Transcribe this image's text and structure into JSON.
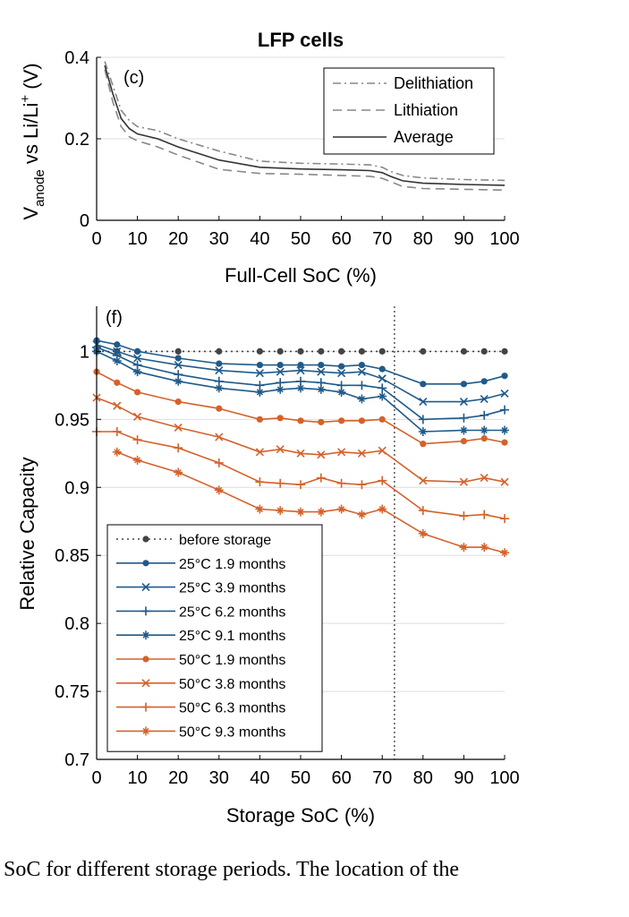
{
  "chart_data": [
    {
      "type": "line",
      "panel_label": "(c)",
      "title": "LFP cells",
      "xlabel": "Full-Cell SoC (%)",
      "ylabel": {
        "main": "V",
        "sub": "anode",
        "mid": " vs Li/Li",
        "sup": "+",
        "end": " (V)"
      },
      "xlim": [
        0,
        100
      ],
      "ylim": [
        0,
        0.4
      ],
      "xticks": [
        "0",
        "10",
        "20",
        "30",
        "40",
        "50",
        "60",
        "70",
        "80",
        "90",
        "100"
      ],
      "yticks": [
        "0",
        "0.2",
        "0.4"
      ],
      "grid": true,
      "legend_position": "top-right",
      "series": [
        {
          "name": "Delithiation",
          "color": "#888888",
          "dash": "dashdot",
          "x": [
            2,
            4,
            6,
            8,
            10,
            15,
            20,
            30,
            40,
            50,
            60,
            67,
            70,
            72,
            75,
            80,
            90,
            100
          ],
          "y": [
            0.39,
            0.33,
            0.27,
            0.245,
            0.23,
            0.22,
            0.2,
            0.17,
            0.145,
            0.14,
            0.138,
            0.136,
            0.13,
            0.12,
            0.11,
            0.104,
            0.1,
            0.098
          ]
        },
        {
          "name": "Lithiation",
          "color": "#888888",
          "dash": "dash",
          "x": [
            2,
            4,
            6,
            8,
            10,
            15,
            20,
            30,
            40,
            50,
            60,
            67,
            70,
            72,
            75,
            80,
            90,
            100
          ],
          "y": [
            0.37,
            0.29,
            0.23,
            0.205,
            0.195,
            0.18,
            0.16,
            0.125,
            0.115,
            0.113,
            0.11,
            0.108,
            0.103,
            0.095,
            0.083,
            0.078,
            0.076,
            0.074
          ]
        },
        {
          "name": "Average",
          "color": "#333333",
          "dash": "solid",
          "x": [
            2,
            4,
            6,
            8,
            10,
            15,
            20,
            30,
            40,
            50,
            60,
            67,
            70,
            72,
            75,
            80,
            90,
            100
          ],
          "y": [
            0.38,
            0.31,
            0.25,
            0.225,
            0.212,
            0.2,
            0.18,
            0.148,
            0.13,
            0.126,
            0.124,
            0.122,
            0.117,
            0.108,
            0.097,
            0.091,
            0.088,
            0.086
          ]
        }
      ]
    },
    {
      "type": "line",
      "panel_label": "(f)",
      "xlabel": "Storage SoC (%)",
      "ylabel": "Relative Capacity",
      "xlim": [
        0,
        100
      ],
      "ylim": [
        0.7,
        1.02
      ],
      "xticks": [
        "0",
        "10",
        "20",
        "30",
        "40",
        "50",
        "60",
        "70",
        "80",
        "90",
        "100"
      ],
      "yticks": [
        "0.7",
        "0.75",
        "0.8",
        "0.85",
        "0.9",
        "0.95",
        "1"
      ],
      "grid": true,
      "vline_x": 73,
      "legend_position": "bottom-left",
      "series": [
        {
          "name": "before storage",
          "temp": "",
          "period": "",
          "color": "#444444",
          "marker": "dot",
          "dash": "dotted",
          "x": [
            0,
            5,
            10,
            20,
            30,
            40,
            45,
            50,
            55,
            60,
            65,
            70,
            80,
            90,
            95,
            100
          ],
          "y": [
            1.0,
            1.0,
            1.0,
            1.0,
            1.0,
            1.0,
            1.0,
            1.0,
            1.0,
            1.0,
            1.0,
            1.0,
            1.0,
            1.0,
            1.0,
            1.0
          ]
        },
        {
          "name": "25°C  1.9 months",
          "temp": "25°C",
          "period": "1.9 months",
          "color": "#1f5a8a",
          "marker": "dot",
          "dash": "solid",
          "x": [
            0,
            5,
            10,
            20,
            30,
            40,
            45,
            50,
            55,
            60,
            65,
            70,
            80,
            90,
            95,
            100
          ],
          "y": [
            1.008,
            1.005,
            1.0,
            0.995,
            0.991,
            0.99,
            0.99,
            0.99,
            0.99,
            0.989,
            0.99,
            0.987,
            0.976,
            0.976,
            0.978,
            0.982
          ]
        },
        {
          "name": "25°C  3.9 months",
          "temp": "25°C",
          "period": "3.9 months",
          "color": "#1f5a8a",
          "marker": "x",
          "dash": "solid",
          "x": [
            0,
            5,
            10,
            20,
            30,
            40,
            45,
            50,
            55,
            60,
            65,
            70,
            80,
            90,
            95,
            100
          ],
          "y": [
            1.005,
            1.0,
            0.995,
            0.99,
            0.986,
            0.984,
            0.985,
            0.986,
            0.985,
            0.984,
            0.985,
            0.98,
            0.963,
            0.963,
            0.965,
            0.969
          ]
        },
        {
          "name": "25°C  6.2 months",
          "temp": "25°C",
          "period": "6.2 months",
          "color": "#1f5a8a",
          "marker": "plus",
          "dash": "solid",
          "x": [
            0,
            5,
            10,
            20,
            30,
            40,
            45,
            50,
            55,
            60,
            65,
            70,
            80,
            90,
            95,
            100
          ],
          "y": [
            1.003,
            0.997,
            0.99,
            0.983,
            0.978,
            0.975,
            0.977,
            0.978,
            0.977,
            0.975,
            0.975,
            0.973,
            0.95,
            0.951,
            0.953,
            0.957
          ]
        },
        {
          "name": "25°C  9.1 months",
          "temp": "25°C",
          "period": "9.1 months",
          "color": "#1f5a8a",
          "marker": "star",
          "dash": "solid",
          "x": [
            0,
            5,
            10,
            20,
            30,
            40,
            45,
            50,
            55,
            60,
            65,
            70,
            80,
            90,
            95,
            100
          ],
          "y": [
            1.0,
            0.993,
            0.985,
            0.978,
            0.973,
            0.97,
            0.972,
            0.973,
            0.972,
            0.97,
            0.965,
            0.967,
            0.941,
            0.942,
            0.942,
            0.942
          ]
        },
        {
          "name": "50°C  1.9 months",
          "temp": "50°C",
          "period": "1.9 months",
          "color": "#d4622a",
          "marker": "dot",
          "dash": "solid",
          "x": [
            0,
            5,
            10,
            20,
            30,
            40,
            45,
            50,
            55,
            60,
            65,
            70,
            80,
            90,
            95,
            100
          ],
          "y": [
            0.985,
            0.977,
            0.97,
            0.963,
            0.958,
            0.95,
            0.951,
            0.949,
            0.948,
            0.949,
            0.949,
            0.95,
            0.932,
            0.934,
            0.936,
            0.933
          ]
        },
        {
          "name": "50°C  3.8 months",
          "temp": "50°C",
          "period": "3.8 months",
          "color": "#d4622a",
          "marker": "x",
          "dash": "solid",
          "x": [
            0,
            5,
            10,
            20,
            30,
            40,
            45,
            50,
            55,
            60,
            65,
            70,
            80,
            90,
            95,
            100
          ],
          "y": [
            0.966,
            0.96,
            0.952,
            0.944,
            0.937,
            0.926,
            0.928,
            0.925,
            0.924,
            0.926,
            0.925,
            0.927,
            0.905,
            0.904,
            0.907,
            0.904
          ]
        },
        {
          "name": "50°C  6.3 months",
          "temp": "50°C",
          "period": "6.3 months",
          "color": "#d4622a",
          "marker": "plus",
          "dash": "solid",
          "x": [
            0,
            5,
            10,
            20,
            30,
            40,
            45,
            50,
            55,
            60,
            65,
            70,
            80,
            90,
            95,
            100
          ],
          "y": [
            0.941,
            0.941,
            0.935,
            0.929,
            0.918,
            0.904,
            0.903,
            0.902,
            0.907,
            0.903,
            0.902,
            0.905,
            0.883,
            0.879,
            0.88,
            0.877
          ]
        },
        {
          "name": "50°C  9.3 months",
          "temp": "50°C",
          "period": "9.3 months",
          "color": "#d4622a",
          "marker": "star",
          "dash": "solid",
          "x": [
            5,
            10,
            20,
            30,
            40,
            45,
            50,
            55,
            60,
            65,
            70,
            80,
            90,
            95,
            100
          ],
          "y": [
            0.926,
            0.92,
            0.911,
            0.898,
            0.884,
            0.883,
            0.882,
            0.882,
            0.884,
            0.88,
            0.884,
            0.866,
            0.856,
            0.856,
            0.852
          ]
        }
      ]
    }
  ],
  "caption": "SoC for different storage periods. The location of the"
}
